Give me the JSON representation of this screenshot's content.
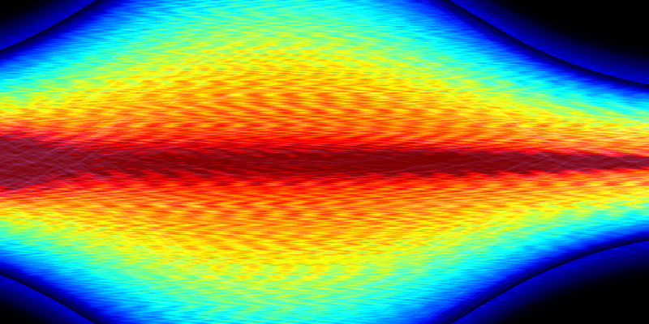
{
  "image": {
    "kind": "trajectory density visualization",
    "background_color": "#000000",
    "colormap": "jet",
    "colormap_stops": [
      "#00007f",
      "#0000ff",
      "#007fff",
      "#00ffff",
      "#7fff7f",
      "#ffff00",
      "#ff7f00",
      "#ff0000",
      "#7f0000"
    ]
  }
}
